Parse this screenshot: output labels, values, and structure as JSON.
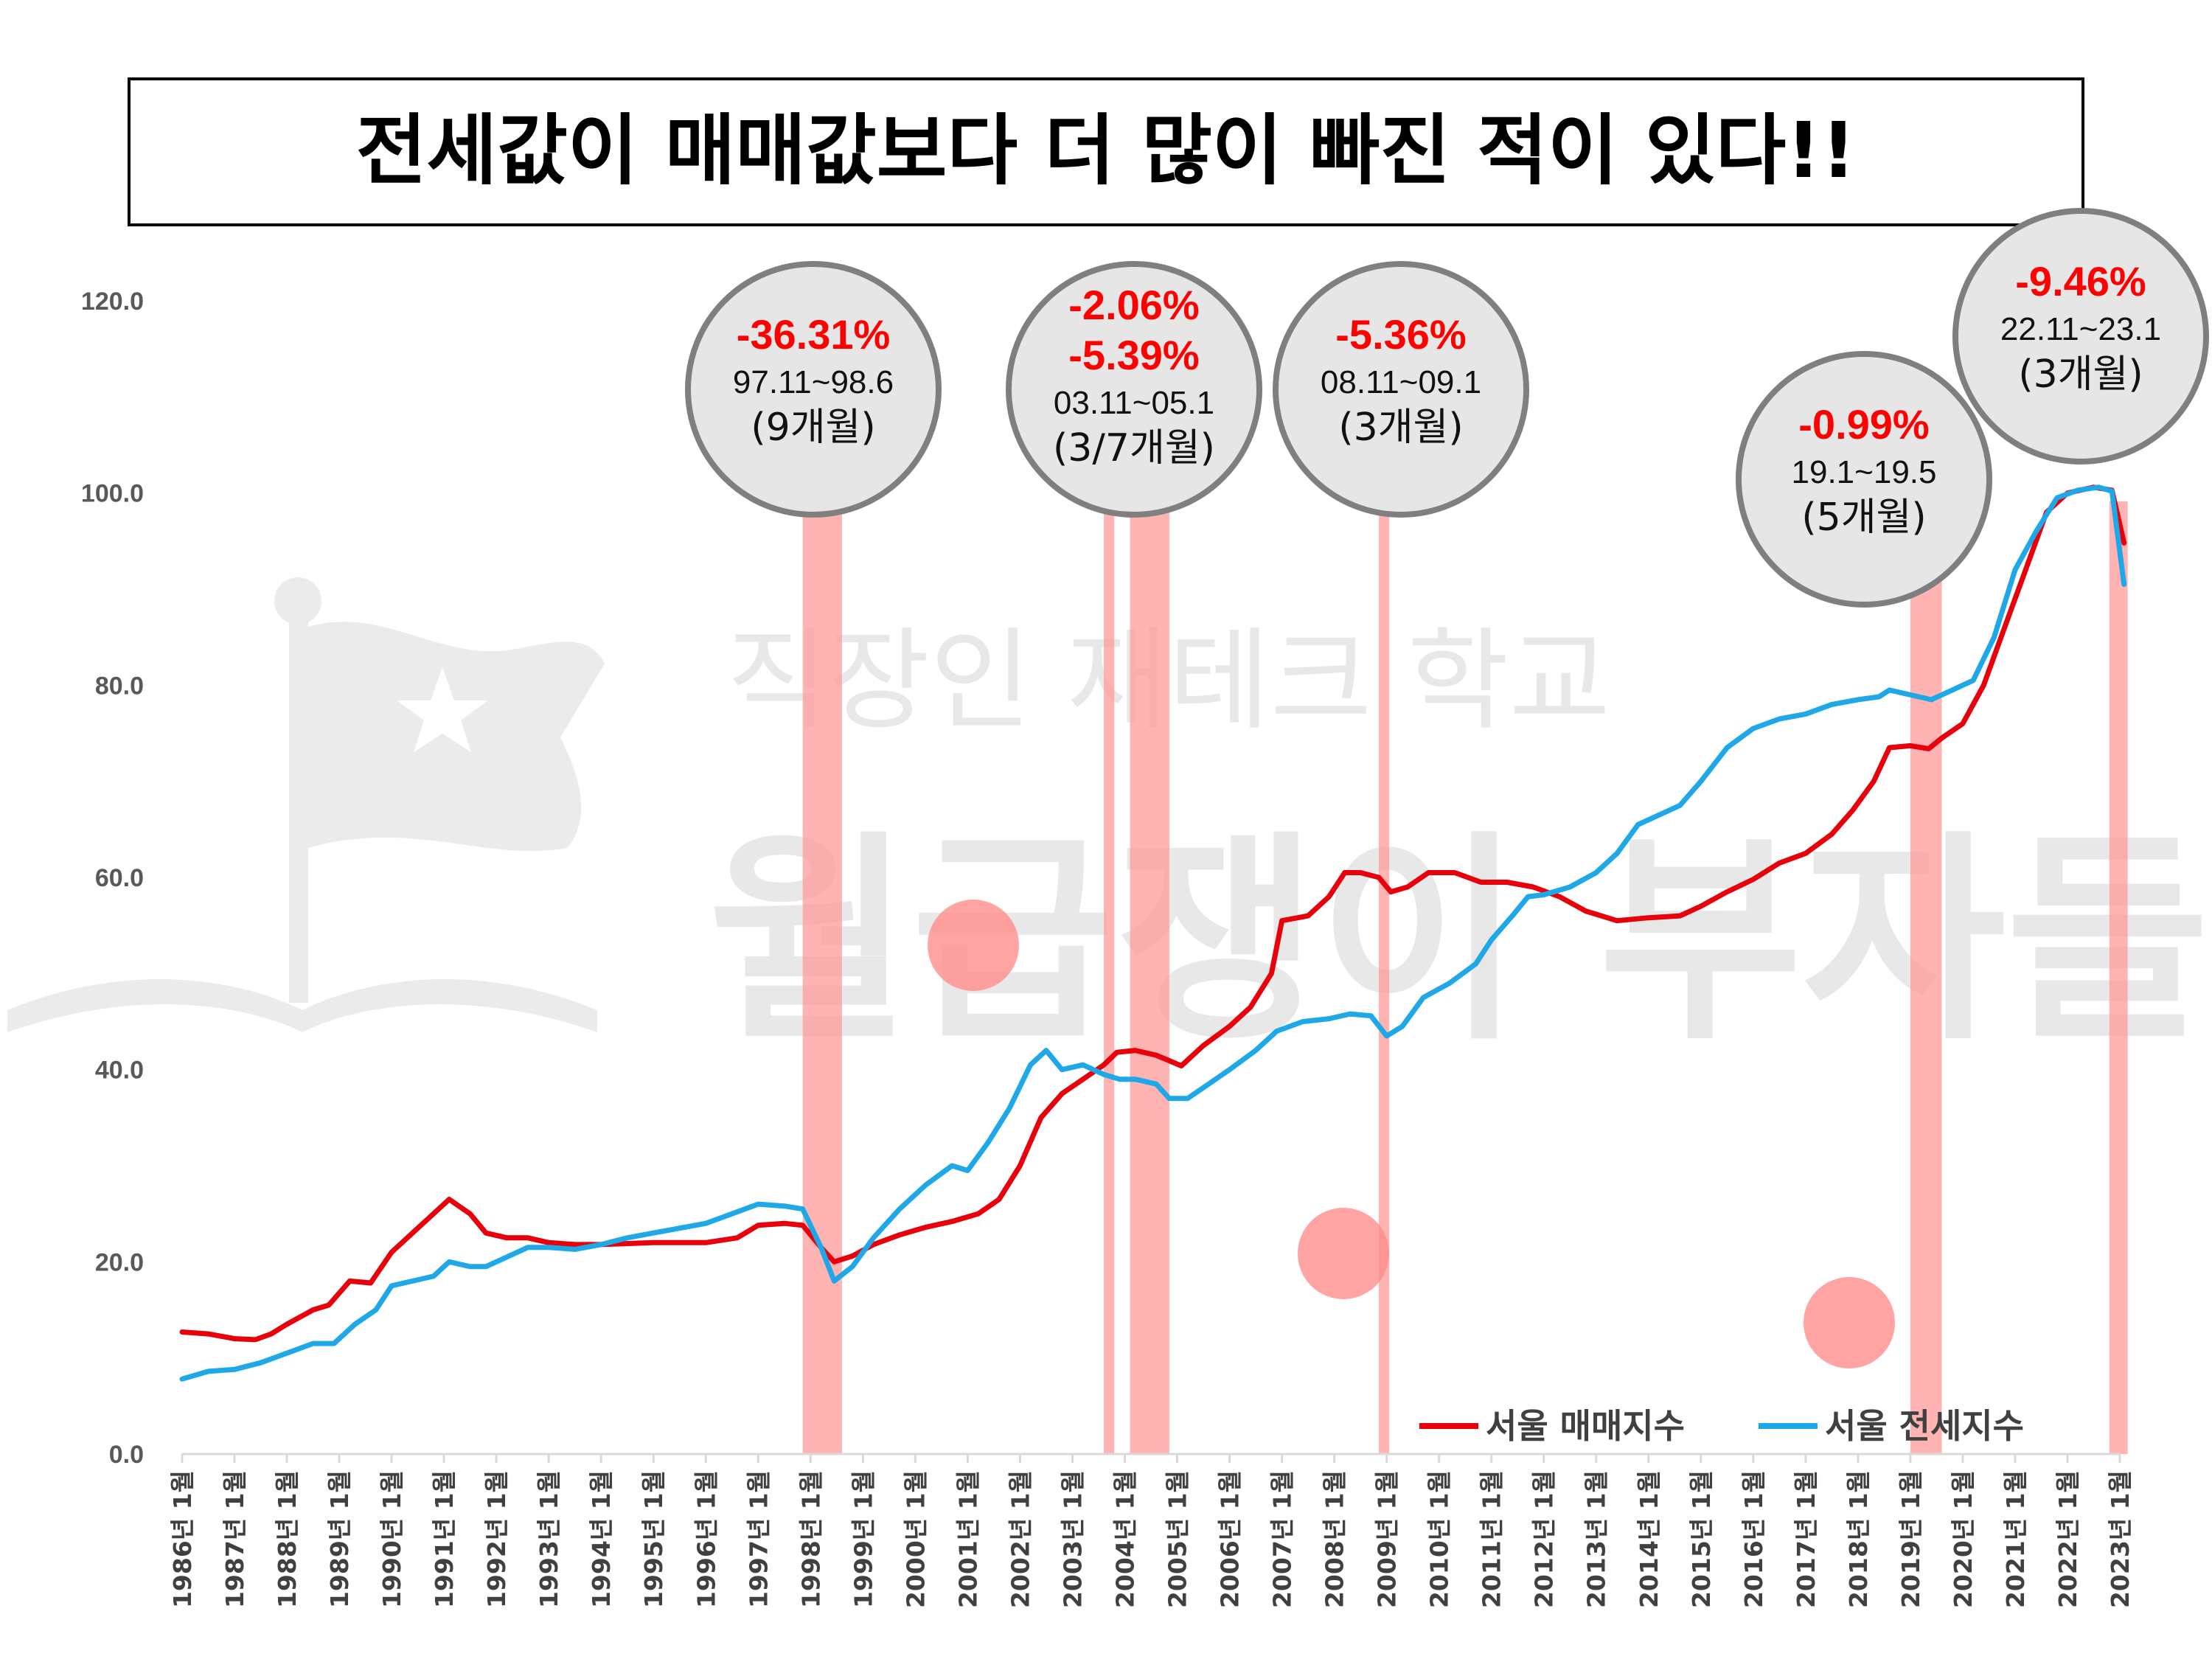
{
  "title": "전세값이 매매값보다 더 많이 빠진 적이 있다!!",
  "watermark": {
    "line1": "직장인 재테크 학교",
    "line2": "월급쟁이 부자들"
  },
  "colors": {
    "sale": "#e8000b",
    "jeonse": "#1fa8e8",
    "band": "#ff9999",
    "bubble_bg": "#e6e6e6",
    "bubble_border": "#7f7f7f",
    "pct": "#ff0000"
  },
  "chart_data": {
    "type": "line",
    "ylim": [
      0,
      120
    ],
    "yticks": [
      "0.0",
      "20.0",
      "40.0",
      "60.0",
      "80.0",
      "100.0",
      "120.0"
    ],
    "xticks": [
      "1986년 1월",
      "1987년 1월",
      "1988년 1월",
      "1989년 1월",
      "1990년 1월",
      "1991년 1월",
      "1992년 1월",
      "1993년 1월",
      "1994년 1월",
      "1995년 1월",
      "1996년 1월",
      "1997년 1월",
      "1998년 1월",
      "1999년 1월",
      "2000년 1월",
      "2001년 1월",
      "2002년 1월",
      "2003년 1월",
      "2004년 1월",
      "2005년 1월",
      "2006년 1월",
      "2007년 1월",
      "2008년 1월",
      "2009년 1월",
      "2010년 1월",
      "2011년 1월",
      "2012년 1월",
      "2013년 1월",
      "2014년 1월",
      "2015년 1월",
      "2016년 1월",
      "2017년 1월",
      "2018년 1월",
      "2019년 1월",
      "2020년 1월",
      "2021년 1월",
      "2022년 1월",
      "2023년 1월"
    ],
    "x_start": 1986.0,
    "x_end": 2023.0,
    "series": [
      {
        "name": "서울 매매지수",
        "color": "#e8000b",
        "points": [
          [
            1986.0,
            12.7
          ],
          [
            1986.5,
            12.5
          ],
          [
            1987.0,
            12.0
          ],
          [
            1987.4,
            11.9
          ],
          [
            1987.7,
            12.5
          ],
          [
            1988.0,
            13.5
          ],
          [
            1988.5,
            15.0
          ],
          [
            1988.8,
            15.5
          ],
          [
            1989.2,
            18.0
          ],
          [
            1989.6,
            17.8
          ],
          [
            1990.0,
            21.0
          ],
          [
            1990.4,
            23.0
          ],
          [
            1990.8,
            25.0
          ],
          [
            1991.1,
            26.5
          ],
          [
            1991.5,
            25.0
          ],
          [
            1991.8,
            23.0
          ],
          [
            1992.2,
            22.5
          ],
          [
            1992.6,
            22.5
          ],
          [
            1993.0,
            22.0
          ],
          [
            1993.5,
            21.8
          ],
          [
            1994.0,
            21.8
          ],
          [
            1995.0,
            22.0
          ],
          [
            1996.0,
            22.0
          ],
          [
            1996.6,
            22.5
          ],
          [
            1997.0,
            23.8
          ],
          [
            1997.5,
            24.0
          ],
          [
            1997.85,
            23.8
          ],
          [
            1998.2,
            21.5
          ],
          [
            1998.45,
            20.0
          ],
          [
            1998.8,
            20.6
          ],
          [
            1999.2,
            21.8
          ],
          [
            1999.7,
            22.8
          ],
          [
            2000.2,
            23.6
          ],
          [
            2000.7,
            24.2
          ],
          [
            2001.2,
            25.0
          ],
          [
            2001.6,
            26.5
          ],
          [
            2002.0,
            30.0
          ],
          [
            2002.4,
            35.0
          ],
          [
            2002.8,
            37.5
          ],
          [
            2003.2,
            39.0
          ],
          [
            2003.6,
            40.5
          ],
          [
            2003.85,
            41.8
          ],
          [
            2004.2,
            42.0
          ],
          [
            2004.6,
            41.5
          ],
          [
            2005.08,
            40.4
          ],
          [
            2005.5,
            42.5
          ],
          [
            2006.0,
            44.5
          ],
          [
            2006.4,
            46.5
          ],
          [
            2006.8,
            50.0
          ],
          [
            2007.0,
            55.5
          ],
          [
            2007.5,
            56.0
          ],
          [
            2007.9,
            58.0
          ],
          [
            2008.2,
            60.5
          ],
          [
            2008.5,
            60.5
          ],
          [
            2008.85,
            60.0
          ],
          [
            2009.08,
            58.5
          ],
          [
            2009.4,
            59.0
          ],
          [
            2009.8,
            60.5
          ],
          [
            2010.3,
            60.5
          ],
          [
            2010.8,
            59.5
          ],
          [
            2011.3,
            59.5
          ],
          [
            2011.8,
            59.0
          ],
          [
            2012.3,
            58.0
          ],
          [
            2012.8,
            56.5
          ],
          [
            2013.4,
            55.5
          ],
          [
            2014.0,
            55.8
          ],
          [
            2014.6,
            56.0
          ],
          [
            2015.0,
            57.0
          ],
          [
            2015.5,
            58.5
          ],
          [
            2016.0,
            59.8
          ],
          [
            2016.5,
            61.5
          ],
          [
            2017.0,
            62.5
          ],
          [
            2017.5,
            64.5
          ],
          [
            2017.9,
            67.0
          ],
          [
            2018.3,
            70.0
          ],
          [
            2018.6,
            73.5
          ],
          [
            2019.0,
            73.7
          ],
          [
            2019.35,
            73.4
          ],
          [
            2019.6,
            74.5
          ],
          [
            2020.0,
            76.0
          ],
          [
            2020.4,
            80.0
          ],
          [
            2020.8,
            86.0
          ],
          [
            2021.2,
            92.0
          ],
          [
            2021.6,
            98.0
          ],
          [
            2022.0,
            100.0
          ],
          [
            2022.5,
            100.6
          ],
          [
            2022.85,
            100.3
          ],
          [
            2023.08,
            94.8
          ]
        ]
      },
      {
        "name": "서울 전세지수",
        "color": "#1fa8e8",
        "points": [
          [
            1986.0,
            7.8
          ],
          [
            1986.5,
            8.6
          ],
          [
            1987.0,
            8.8
          ],
          [
            1987.5,
            9.5
          ],
          [
            1988.0,
            10.5
          ],
          [
            1988.5,
            11.5
          ],
          [
            1988.9,
            11.5
          ],
          [
            1989.3,
            13.5
          ],
          [
            1989.7,
            15.0
          ],
          [
            1990.0,
            17.5
          ],
          [
            1990.4,
            18.0
          ],
          [
            1990.8,
            18.5
          ],
          [
            1991.1,
            20.0
          ],
          [
            1991.5,
            19.5
          ],
          [
            1991.8,
            19.5
          ],
          [
            1992.2,
            20.5
          ],
          [
            1992.6,
            21.5
          ],
          [
            1993.0,
            21.5
          ],
          [
            1993.5,
            21.3
          ],
          [
            1994.0,
            21.8
          ],
          [
            1994.5,
            22.5
          ],
          [
            1995.0,
            23.0
          ],
          [
            1995.5,
            23.5
          ],
          [
            1996.0,
            24.0
          ],
          [
            1996.5,
            25.0
          ],
          [
            1997.0,
            26.0
          ],
          [
            1997.5,
            25.8
          ],
          [
            1997.85,
            25.5
          ],
          [
            1998.2,
            21.5
          ],
          [
            1998.45,
            18.0
          ],
          [
            1998.8,
            19.5
          ],
          [
            1999.2,
            22.5
          ],
          [
            1999.7,
            25.5
          ],
          [
            2000.2,
            28.0
          ],
          [
            2000.7,
            30.0
          ],
          [
            2001.0,
            29.5
          ],
          [
            2001.4,
            32.5
          ],
          [
            2001.8,
            36.0
          ],
          [
            2002.2,
            40.5
          ],
          [
            2002.5,
            42.0
          ],
          [
            2002.8,
            40.0
          ],
          [
            2003.2,
            40.5
          ],
          [
            2003.6,
            39.5
          ],
          [
            2003.9,
            39.0
          ],
          [
            2004.2,
            39.0
          ],
          [
            2004.6,
            38.5
          ],
          [
            2004.85,
            37.0
          ],
          [
            2005.2,
            37.0
          ],
          [
            2005.6,
            38.5
          ],
          [
            2006.0,
            40.0
          ],
          [
            2006.5,
            42.0
          ],
          [
            2006.9,
            44.0
          ],
          [
            2007.4,
            45.0
          ],
          [
            2007.9,
            45.3
          ],
          [
            2008.3,
            45.8
          ],
          [
            2008.7,
            45.6
          ],
          [
            2009.0,
            43.5
          ],
          [
            2009.3,
            44.5
          ],
          [
            2009.7,
            47.5
          ],
          [
            2010.2,
            49.0
          ],
          [
            2010.7,
            51.0
          ],
          [
            2011.0,
            53.5
          ],
          [
            2011.4,
            56.0
          ],
          [
            2011.7,
            58.0
          ],
          [
            2012.0,
            58.2
          ],
          [
            2012.5,
            59.0
          ],
          [
            2013.0,
            60.5
          ],
          [
            2013.4,
            62.5
          ],
          [
            2013.8,
            65.5
          ],
          [
            2014.2,
            66.5
          ],
          [
            2014.6,
            67.5
          ],
          [
            2015.0,
            70.0
          ],
          [
            2015.5,
            73.5
          ],
          [
            2016.0,
            75.5
          ],
          [
            2016.5,
            76.5
          ],
          [
            2017.0,
            77.0
          ],
          [
            2017.5,
            78.0
          ],
          [
            2018.0,
            78.5
          ],
          [
            2018.4,
            78.8
          ],
          [
            2018.6,
            79.5
          ],
          [
            2019.0,
            79.0
          ],
          [
            2019.4,
            78.5
          ],
          [
            2019.8,
            79.5
          ],
          [
            2020.2,
            80.5
          ],
          [
            2020.6,
            85.0
          ],
          [
            2021.0,
            92.0
          ],
          [
            2021.4,
            96.0
          ],
          [
            2021.8,
            99.5
          ],
          [
            2022.2,
            100.3
          ],
          [
            2022.6,
            100.6
          ],
          [
            2022.85,
            100.2
          ],
          [
            2023.08,
            90.5
          ]
        ]
      }
    ]
  },
  "bands": [
    {
      "from": 1997.85,
      "to": 1998.6
    },
    {
      "from": 2003.6,
      "to": 2003.8
    },
    {
      "from": 2004.1,
      "to": 2004.85
    },
    {
      "from": 2008.85,
      "to": 2009.05
    },
    {
      "from": 2019.0,
      "to": 2019.6
    },
    {
      "from": 2022.8,
      "to": 2023.15
    }
  ],
  "annotations": [
    {
      "pct": [
        "-36.31%"
      ],
      "range": "97.11~98.6",
      "duration": "(9개월)"
    },
    {
      "pct": [
        "-2.06%",
        "-5.39%"
      ],
      "range": "03.11~05.1",
      "duration": "(3/7개월)"
    },
    {
      "pct": [
        "-5.36%"
      ],
      "range": "08.11~09.1",
      "duration": "(3개월)"
    },
    {
      "pct": [
        "-0.99%"
      ],
      "range": "19.1~19.5",
      "duration": "(5개월)"
    },
    {
      "pct": [
        "-9.46%"
      ],
      "range": "22.11~23.1",
      "duration": "(3개월)"
    }
  ],
  "legend": {
    "position": "bottom-right"
  }
}
